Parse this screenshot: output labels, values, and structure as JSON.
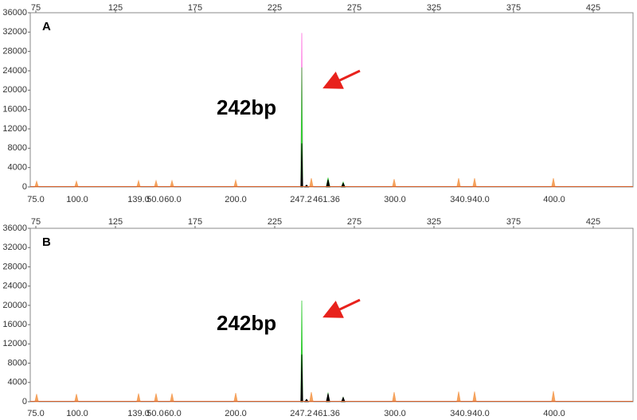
{
  "chart_data": [
    {
      "type": "peaks",
      "label": "A",
      "annotation": "242bp",
      "xlim": [
        71.5,
        450
      ],
      "xticks": [
        75,
        125,
        175,
        225,
        275,
        325,
        375,
        425
      ],
      "ylim": [
        0,
        36000
      ],
      "yticks": [
        0,
        4000,
        8000,
        12000,
        16000,
        20000,
        24000,
        28000,
        32000,
        36000
      ],
      "series": [
        {
          "color": "#ff66dd",
          "x": [
            242
          ],
          "values": [
            31800
          ]
        },
        {
          "color": "#33cc33",
          "x": [
            242,
            258.5,
            268
          ],
          "values": [
            24700,
            1900,
            1000
          ]
        },
        {
          "color": "#000000",
          "x": [
            242,
            245,
            258.5,
            268
          ],
          "values": [
            9000,
            400,
            1500,
            800
          ]
        },
        {
          "color": "#f5a25d",
          "x": [
            75.5,
            100.5,
            139.5,
            150.5,
            160.5,
            200.5,
            248,
            300,
            340.5,
            350.5,
            400
          ],
          "values": [
            1200,
            1200,
            1300,
            1300,
            1300,
            1400,
            1800,
            1600,
            1800,
            1800,
            1800
          ]
        }
      ],
      "size_labels": {
        "texts": [
          "75.0",
          "100.0",
          "139.0",
          "50.0",
          "60.0",
          "200.0",
          "247.2",
          "461.36",
          "300.0",
          "340.9",
          "40.0",
          "400.0"
        ],
        "x": [
          75,
          101,
          139.5,
          150,
          161,
          200.5,
          241.5,
          257.5,
          300.5,
          342,
          354.5,
          400.5
        ]
      }
    },
    {
      "type": "peaks",
      "label": "B",
      "annotation": "242bp",
      "xlim": [
        71.5,
        450
      ],
      "xticks": [
        75,
        125,
        175,
        225,
        275,
        325,
        375,
        425
      ],
      "ylim": [
        0,
        36000
      ],
      "yticks": [
        0,
        4000,
        8000,
        12000,
        16000,
        20000,
        24000,
        28000,
        32000,
        36000
      ],
      "series": [
        {
          "color": "#33cc33",
          "x": [
            242,
            258.5,
            268
          ],
          "values": [
            21000,
            1900,
            1000
          ]
        },
        {
          "color": "#000000",
          "x": [
            242,
            245,
            258.5,
            268
          ],
          "values": [
            9800,
            500,
            1700,
            900
          ]
        },
        {
          "color": "#f5a25d",
          "x": [
            75.5,
            100.5,
            139.5,
            150.5,
            160.5,
            200.5,
            248,
            300,
            340.5,
            350.5,
            400
          ],
          "values": [
            1600,
            1600,
            1700,
            1700,
            1700,
            1800,
            2000,
            2000,
            2100,
            2100,
            2200
          ]
        }
      ],
      "size_labels": {
        "texts": [
          "75.0",
          "100.0",
          "139.0",
          "50.0",
          "60.0",
          "200.0",
          "247.2",
          "461.36",
          "300.0",
          "340.9",
          "40.0",
          "400.0"
        ],
        "x": [
          75,
          101,
          139.5,
          150,
          161,
          200.5,
          241.5,
          257.5,
          300.5,
          342,
          354.5,
          400.5
        ]
      }
    }
  ]
}
